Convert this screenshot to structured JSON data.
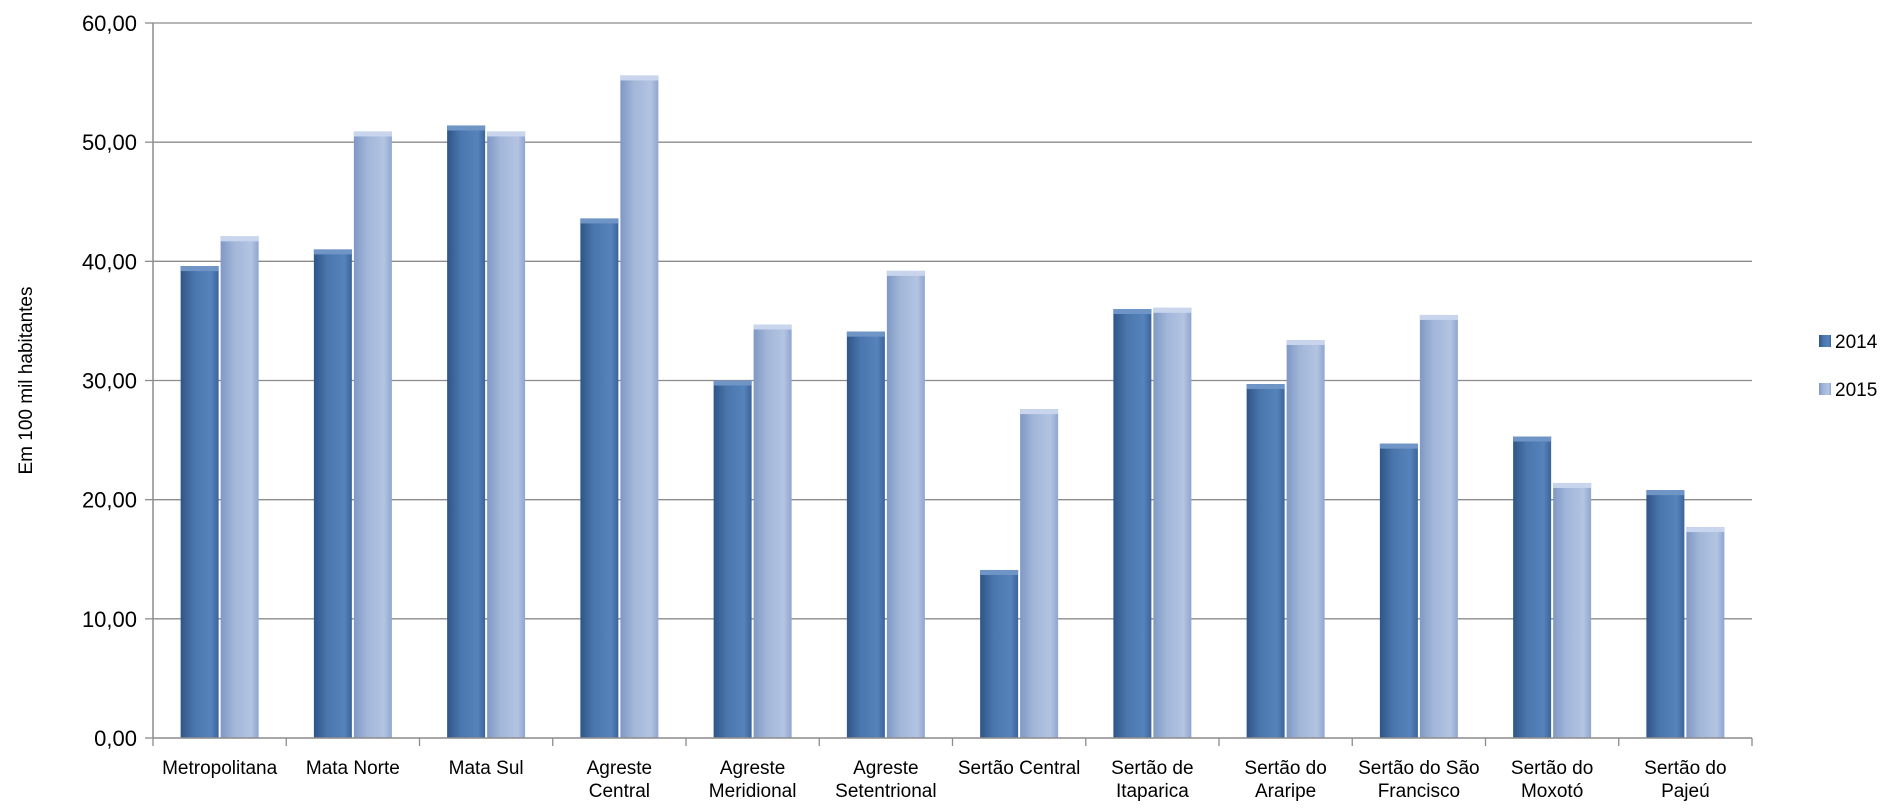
{
  "chart_data": {
    "type": "bar",
    "ylabel": "Em 100 mil habitantes",
    "xlabel": "",
    "ylim": [
      0,
      60
    ],
    "y_ticks": [
      "0,00",
      "10,00",
      "20,00",
      "30,00",
      "40,00",
      "50,00",
      "60,00"
    ],
    "y_tick_values": [
      0,
      10,
      20,
      30,
      40,
      50,
      60
    ],
    "grid": true,
    "legend_position": "right",
    "categories": [
      [
        "Metropolitana"
      ],
      [
        "Mata Norte"
      ],
      [
        "Mata Sul"
      ],
      [
        "Agreste",
        "Central"
      ],
      [
        "Agreste",
        "Meridional"
      ],
      [
        "Agreste",
        "Setentrional"
      ],
      [
        "Sertão Central"
      ],
      [
        "Sertão de",
        "Itaparica"
      ],
      [
        "Sertão do",
        "Araripe"
      ],
      [
        "Sertão do São",
        "Francisco"
      ],
      [
        "Sertão do",
        "Moxotó"
      ],
      [
        "Sertão do",
        "Pajeú"
      ]
    ],
    "series": [
      {
        "name": "2014",
        "color": "#4a76ad",
        "values": [
          39.6,
          41.0,
          51.4,
          43.6,
          30.0,
          34.1,
          14.1,
          36.0,
          29.7,
          24.7,
          25.3,
          20.8
        ]
      },
      {
        "name": "2015",
        "color": "#a2b6d9",
        "values": [
          42.1,
          50.9,
          50.9,
          55.6,
          34.7,
          39.2,
          27.6,
          36.1,
          33.4,
          35.5,
          21.4,
          17.7
        ]
      }
    ]
  }
}
